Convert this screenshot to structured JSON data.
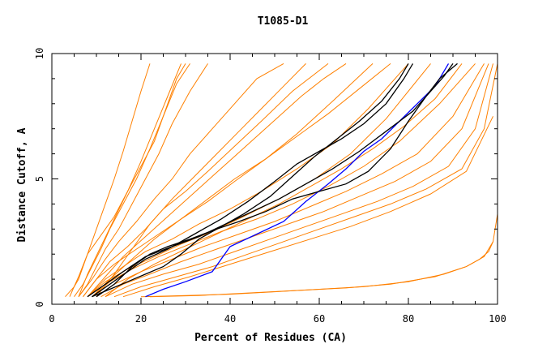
{
  "chart_data": {
    "type": "line",
    "title": "T1085-D1",
    "xlabel": "Percent of Residues (CA)",
    "ylabel": "Distance Cutoff, A",
    "xlim": [
      0,
      100
    ],
    "ylim": [
      0,
      10
    ],
    "x_ticks": [
      0,
      20,
      40,
      60,
      80,
      100
    ],
    "y_ticks": [
      0,
      5,
      10
    ],
    "grid": false,
    "colors": {
      "models": "#ff8000",
      "highlight": "#0000ff",
      "reference": "#000000",
      "axes": "#000000"
    },
    "series": [
      {
        "x": [
          3,
          5,
          6,
          7,
          8,
          10,
          12,
          14,
          17,
          20,
          23,
          26,
          28,
          30
        ],
        "y": [
          0.3,
          0.7,
          1,
          1.5,
          2,
          2.5,
          3,
          3.5,
          4.5,
          5.5,
          6.5,
          8,
          9,
          9.6
        ],
        "color_key": "models"
      },
      {
        "x": [
          5,
          7,
          9,
          11,
          13,
          16,
          19,
          22,
          25,
          28,
          31
        ],
        "y": [
          0.3,
          0.8,
          1.5,
          2.2,
          3,
          4,
          5,
          6.2,
          7.5,
          8.8,
          9.6
        ],
        "color_key": "models"
      },
      {
        "x": [
          6,
          8,
          10,
          12,
          15,
          18,
          21,
          24,
          27,
          31,
          35
        ],
        "y": [
          0.3,
          0.8,
          1.5,
          2.2,
          3,
          4,
          5,
          6,
          7.2,
          8.5,
          9.6
        ],
        "color_key": "models"
      },
      {
        "x": [
          6,
          9,
          12,
          15,
          19,
          23,
          27,
          31,
          36,
          41,
          46,
          52
        ],
        "y": [
          0.3,
          1,
          1.8,
          2.5,
          3.3,
          4.2,
          5,
          6,
          7,
          8,
          9,
          9.6
        ],
        "color_key": "models"
      },
      {
        "x": [
          7,
          10,
          13,
          17,
          21,
          25,
          30,
          35,
          41,
          47,
          54,
          62
        ],
        "y": [
          0.3,
          1,
          1.7,
          2.3,
          3,
          3.8,
          4.5,
          5.3,
          6.3,
          7.3,
          8.5,
          9.6
        ],
        "color_key": "models"
      },
      {
        "x": [
          7,
          10,
          14,
          19,
          24,
          29,
          35,
          41,
          48,
          55,
          63,
          72
        ],
        "y": [
          0.3,
          1,
          1.6,
          2.2,
          2.8,
          3.4,
          4.1,
          4.9,
          5.8,
          6.8,
          8.1,
          9.6
        ],
        "color_key": "models"
      },
      {
        "x": [
          8,
          12,
          16,
          21,
          27,
          33,
          40,
          47,
          55,
          63,
          71,
          80
        ],
        "y": [
          0.3,
          1,
          1.5,
          2.1,
          2.6,
          3.2,
          3.8,
          4.5,
          5.4,
          6.4,
          7.8,
          9.6
        ],
        "color_key": "models"
      },
      {
        "x": [
          8,
          12,
          17,
          23,
          29,
          36,
          43,
          51,
          59,
          67,
          75,
          85
        ],
        "y": [
          0.3,
          0.9,
          1.4,
          1.9,
          2.4,
          2.9,
          3.5,
          4.2,
          5,
          6,
          7.4,
          9.6
        ],
        "color_key": "models"
      },
      {
        "x": [
          9,
          13,
          18,
          24,
          31,
          38,
          46,
          54,
          62,
          70,
          78,
          87,
          95
        ],
        "y": [
          0.3,
          0.9,
          1.4,
          1.9,
          2.4,
          2.9,
          3.4,
          4,
          4.7,
          5.5,
          6.5,
          8,
          9.6
        ],
        "color_key": "models"
      },
      {
        "x": [
          10,
          14,
          20,
          27,
          34,
          42,
          50,
          58,
          66,
          74,
          82,
          90,
          97
        ],
        "y": [
          0.3,
          0.8,
          1.3,
          1.8,
          2.3,
          2.8,
          3.3,
          3.9,
          4.5,
          5.2,
          6,
          7.5,
          9.6
        ],
        "color_key": "models"
      },
      {
        "x": [
          11,
          16,
          22,
          29,
          37,
          45,
          53,
          61,
          69,
          77,
          85,
          92,
          98
        ],
        "y": [
          0.3,
          0.8,
          1.2,
          1.7,
          2.2,
          2.7,
          3.2,
          3.7,
          4.3,
          4.9,
          5.7,
          7,
          9.6
        ],
        "color_key": "models"
      },
      {
        "x": [
          12,
          18,
          25,
          33,
          41,
          49,
          57,
          65,
          73,
          81,
          89,
          95,
          99
        ],
        "y": [
          0.3,
          0.8,
          1.2,
          1.6,
          2.1,
          2.6,
          3.1,
          3.6,
          4.1,
          4.7,
          5.5,
          7,
          9.6
        ],
        "color_key": "models"
      },
      {
        "x": [
          14,
          20,
          28,
          36,
          44,
          52,
          60,
          68,
          76,
          84,
          92,
          97,
          100
        ],
        "y": [
          0.3,
          0.7,
          1.1,
          1.5,
          2,
          2.5,
          3,
          3.5,
          4,
          4.6,
          5.4,
          7,
          9.6
        ],
        "color_key": "models"
      },
      {
        "x": [
          16,
          23,
          31,
          40,
          49,
          58,
          67,
          76,
          85,
          93,
          99
        ],
        "y": [
          0.3,
          0.7,
          1.1,
          1.6,
          2.1,
          2.6,
          3.1,
          3.7,
          4.4,
          5.3,
          7.5
        ],
        "color_key": "models"
      },
      {
        "x": [
          10,
          14,
          18,
          22,
          27,
          32,
          37,
          42,
          47,
          52,
          57
        ],
        "y": [
          0.3,
          1.2,
          2.2,
          3.2,
          4.2,
          5.1,
          6,
          6.9,
          7.8,
          8.7,
          9.6
        ],
        "color_key": "models"
      },
      {
        "x": [
          8,
          12,
          16,
          21,
          26,
          31,
          36,
          41,
          46,
          51,
          56,
          61,
          66
        ],
        "y": [
          0.3,
          1.1,
          1.9,
          2.7,
          3.5,
          4.3,
          5.1,
          5.9,
          6.7,
          7.5,
          8.3,
          9,
          9.6
        ],
        "color_key": "models"
      },
      {
        "x": [
          9,
          13,
          18,
          23,
          29,
          35,
          41,
          48,
          55,
          62,
          69,
          76
        ],
        "y": [
          0.3,
          1,
          1.8,
          2.6,
          3.4,
          4.2,
          5,
          5.8,
          6.7,
          7.6,
          8.6,
          9.6
        ],
        "color_key": "models"
      },
      {
        "x": [
          6,
          8,
          11,
          14,
          17,
          20,
          23,
          26,
          29
        ],
        "y": [
          0.3,
          1.2,
          2.3,
          3.4,
          4.5,
          5.7,
          7,
          8.3,
          9.6
        ],
        "color_key": "models"
      },
      {
        "x": [
          4,
          6,
          8,
          10,
          12,
          14,
          16,
          18,
          20,
          22
        ],
        "y": [
          0.3,
          1.1,
          2,
          3,
          4,
          5,
          6.1,
          7.3,
          8.5,
          9.6
        ],
        "color_key": "models"
      },
      {
        "x": [
          12,
          17,
          23,
          30,
          37,
          44,
          51,
          58,
          65,
          72,
          79,
          86,
          92
        ],
        "y": [
          0.3,
          1,
          1.6,
          2.2,
          2.8,
          3.4,
          4,
          4.7,
          5.4,
          6.2,
          7.1,
          8.2,
          9.6
        ],
        "color_key": "models"
      },
      {
        "x": [
          20,
          30,
          40,
          50,
          60,
          70,
          80,
          88,
          93,
          96,
          98,
          99
        ],
        "y": [
          0.3,
          0.35,
          0.4,
          0.5,
          0.6,
          0.7,
          0.9,
          1.2,
          1.5,
          1.8,
          2.1,
          2.5
        ],
        "color_key": "models"
      },
      {
        "x": [
          22,
          33,
          44,
          55,
          66,
          76,
          86,
          93,
          97,
          99,
          100
        ],
        "y": [
          0.3,
          0.35,
          0.45,
          0.55,
          0.65,
          0.8,
          1.1,
          1.5,
          1.9,
          2.5,
          3.6
        ],
        "color_key": "models"
      },
      {
        "x": [
          21,
          25,
          30,
          36,
          40,
          46,
          52,
          57,
          62,
          66,
          70,
          74,
          78,
          82,
          86,
          89
        ],
        "y": [
          0.3,
          0.6,
          0.9,
          1.3,
          2.3,
          2.8,
          3.3,
          4.1,
          4.8,
          5.4,
          6.1,
          6.6,
          7.3,
          8,
          8.7,
          9.6
        ],
        "color_key": "highlight"
      },
      {
        "x": [
          9,
          13,
          17,
          21,
          26,
          32,
          38,
          44,
          50,
          55,
          60,
          65,
          70,
          75,
          79,
          81
        ],
        "y": [
          0.3,
          0.8,
          1.3,
          1.8,
          2.2,
          2.8,
          3.4,
          4.1,
          4.9,
          5.6,
          6.1,
          6.6,
          7.2,
          8,
          9,
          9.6
        ],
        "color_key": "reference"
      },
      {
        "x": [
          10,
          14,
          18,
          22,
          26,
          31,
          37,
          43,
          49,
          54,
          59,
          64,
          69,
          74,
          78,
          80
        ],
        "y": [
          0.3,
          0.8,
          1.5,
          2,
          2.3,
          2.6,
          3,
          3.6,
          4.3,
          5.1,
          5.9,
          6.6,
          7.3,
          8.1,
          9,
          9.6
        ],
        "color_key": "reference"
      },
      {
        "x": [
          9,
          13,
          17,
          21,
          25,
          29,
          33,
          37,
          42,
          48,
          54,
          60,
          66,
          71,
          76,
          80,
          84,
          87,
          91
        ],
        "y": [
          0.3,
          0.6,
          0.9,
          1.2,
          1.5,
          2,
          2.6,
          3,
          3.3,
          3.7,
          4.2,
          4.5,
          4.8,
          5.3,
          6.2,
          7.3,
          8.3,
          9,
          9.6
        ],
        "color_key": "reference"
      },
      {
        "x": [
          8,
          12,
          16,
          21,
          27,
          33,
          39,
          45,
          51,
          57,
          63,
          69,
          75,
          81,
          85,
          88,
          90
        ],
        "y": [
          0.3,
          0.8,
          1.3,
          1.9,
          2.3,
          2.7,
          3.2,
          3.7,
          4.2,
          4.8,
          5.4,
          6.1,
          6.9,
          7.7,
          8.5,
          9.1,
          9.6
        ],
        "color_key": "reference"
      }
    ]
  }
}
